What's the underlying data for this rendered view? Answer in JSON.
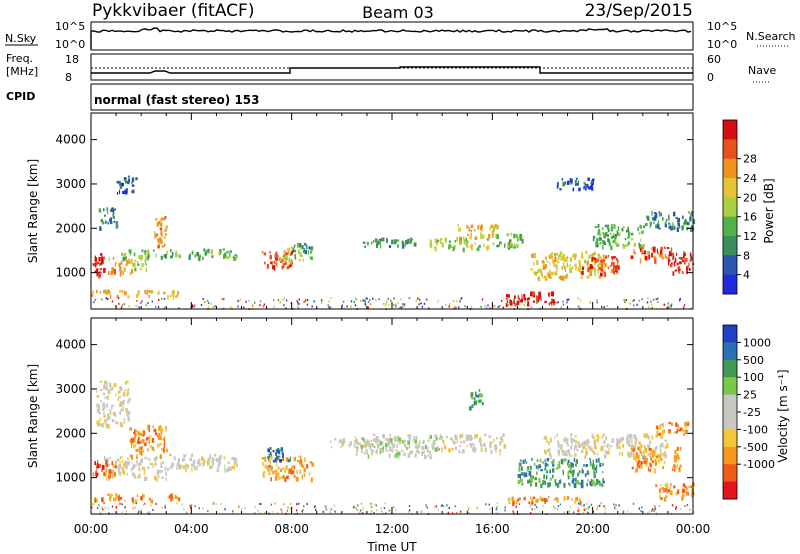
{
  "header": {
    "title": "Pykkvibaer (fitACF)",
    "beam": "Beam 03",
    "date": "23/Sep/2015"
  },
  "panels": {
    "nsky": {
      "label": "N.Sky",
      "tick_top": "10^5",
      "tick_bottom": "10^0",
      "right_label": "N.Search",
      "right_tick_top": "10^5",
      "right_tick_bottom": "10^0"
    },
    "freq": {
      "label_line1": "Freq.",
      "label_line2": "[MHz]",
      "tick_top": "18",
      "tick_bottom": "8",
      "right_label": "Nave",
      "right_tick_top": "60",
      "right_tick_bottom": "0"
    },
    "cpid": {
      "label": "CPID",
      "text": "normal (fast stereo) 153"
    }
  },
  "colors": {
    "power": [
      "#1f2bdc",
      "#2a55b0",
      "#3b8f5a",
      "#52b24a",
      "#a8d043",
      "#e7c436",
      "#f2931f",
      "#e8501c",
      "#d40f0f"
    ],
    "velocity": [
      "#e5141a",
      "#f05b18",
      "#f59a1f",
      "#f5c636",
      "#c8c8c0",
      "#c8c8c0",
      "#7ac74a",
      "#3f9a56",
      "#2a6fb0",
      "#2040c8"
    ],
    "ground_scatter": "#c8c8c0"
  },
  "chart_data": [
    {
      "type": "heatmap",
      "name": "power-panel",
      "xlabel": "",
      "ylabel": "Slant Range [km]",
      "xlim": [
        0,
        24
      ],
      "ylim": [
        180,
        4600
      ],
      "x_ticks": [
        "00:00",
        "04:00",
        "08:00",
        "12:00",
        "16:00",
        "20:00",
        "00:00"
      ],
      "y_ticks": [
        1000,
        2000,
        3000,
        4000
      ],
      "colorbar": {
        "label": "Power [dB]",
        "ticks": [
          "4",
          "8",
          "12",
          "16",
          "20",
          "24",
          "28"
        ]
      },
      "regions": [
        {
          "t0": 0.0,
          "t1": 0.6,
          "r0": 950,
          "r1": 1450,
          "level": 8
        },
        {
          "t0": 0.6,
          "t1": 1.6,
          "r0": 1000,
          "r1": 1400,
          "level": 6
        },
        {
          "t0": 0.3,
          "t1": 1.0,
          "r0": 2000,
          "r1": 2500,
          "level": 2
        },
        {
          "t0": 1.0,
          "t1": 1.8,
          "r0": 2800,
          "r1": 3200,
          "level": 1
        },
        {
          "t0": 1.2,
          "t1": 5.8,
          "r0": 1350,
          "r1": 1550,
          "level": 3
        },
        {
          "t0": 1.6,
          "t1": 2.2,
          "r0": 1100,
          "r1": 1400,
          "level": 4
        },
        {
          "t0": 2.5,
          "t1": 3.0,
          "r0": 1600,
          "r1": 2300,
          "level": 6
        },
        {
          "t0": 0.0,
          "t1": 3.5,
          "r0": 480,
          "r1": 620,
          "level": 5
        },
        {
          "t0": 6.8,
          "t1": 8.0,
          "r0": 1100,
          "r1": 1500,
          "level": 7
        },
        {
          "t0": 7.5,
          "t1": 8.8,
          "r0": 1300,
          "r1": 1600,
          "level": 4
        },
        {
          "t0": 8.0,
          "t1": 8.8,
          "r0": 1500,
          "r1": 1700,
          "level": 2
        },
        {
          "t0": 10.8,
          "t1": 13.0,
          "r0": 1600,
          "r1": 1800,
          "level": 2
        },
        {
          "t0": 13.5,
          "t1": 15.8,
          "r0": 1550,
          "r1": 1800,
          "level": 4
        },
        {
          "t0": 14.5,
          "t1": 16.2,
          "r0": 1800,
          "r1": 2100,
          "level": 5
        },
        {
          "t0": 16.0,
          "t1": 17.2,
          "r0": 1600,
          "r1": 1900,
          "level": 3
        },
        {
          "t0": 16.5,
          "t1": 18.5,
          "r0": 300,
          "r1": 600,
          "level": 8
        },
        {
          "t0": 17.5,
          "t1": 20.5,
          "r0": 900,
          "r1": 1500,
          "level": 5
        },
        {
          "t0": 19.5,
          "t1": 21.0,
          "r0": 1000,
          "r1": 1400,
          "level": 7
        },
        {
          "t0": 20.0,
          "t1": 22.0,
          "r0": 1600,
          "r1": 2100,
          "level": 3
        },
        {
          "t0": 21.5,
          "t1": 23.2,
          "r0": 1300,
          "r1": 1600,
          "level": 7
        },
        {
          "t0": 23.0,
          "t1": 24.0,
          "r0": 1000,
          "r1": 1500,
          "level": 8
        },
        {
          "t0": 22.0,
          "t1": 24.0,
          "r0": 2000,
          "r1": 2400,
          "level": 2
        },
        {
          "t0": 18.5,
          "t1": 20.0,
          "r0": 2900,
          "r1": 3200,
          "level": 1
        }
      ]
    },
    {
      "type": "heatmap",
      "name": "velocity-panel",
      "xlabel": "Time UT",
      "ylabel": "Slant Range [km]",
      "xlim": [
        0,
        24
      ],
      "ylim": [
        180,
        4600
      ],
      "x_ticks": [
        "00:00",
        "04:00",
        "08:00",
        "12:00",
        "16:00",
        "20:00",
        "00:00"
      ],
      "y_ticks": [
        1000,
        2000,
        3000,
        4000
      ],
      "colorbar": {
        "label": "Velocity [m s⁻¹]",
        "ticks": [
          "1000",
          "500",
          "100",
          "25",
          "-25",
          "-100",
          "-500",
          "-1000"
        ]
      },
      "regions": [
        {
          "t0": 0.2,
          "t1": 1.5,
          "r0": 2200,
          "r1": 3200,
          "level": 4
        },
        {
          "t0": 0.5,
          "t1": 3.0,
          "r0": 1000,
          "r1": 1500,
          "level": 4
        },
        {
          "t0": 1.5,
          "t1": 3.0,
          "r0": 1500,
          "r1": 2200,
          "level": 2
        },
        {
          "t0": 0.0,
          "t1": 1.0,
          "r0": 1050,
          "r1": 1400,
          "level": 1
        },
        {
          "t0": 3.0,
          "t1": 5.8,
          "r0": 1200,
          "r1": 1550,
          "level": 4
        },
        {
          "t0": 0.0,
          "t1": 3.5,
          "r0": 500,
          "r1": 650,
          "level": 2
        },
        {
          "t0": 6.8,
          "t1": 8.8,
          "r0": 1000,
          "r1": 1500,
          "level": 2
        },
        {
          "t0": 7.0,
          "t1": 8.0,
          "r0": 1400,
          "r1": 1700,
          "level": 8
        },
        {
          "t0": 9.5,
          "t1": 12.5,
          "r0": 1700,
          "r1": 1900,
          "level": 4
        },
        {
          "t0": 10.5,
          "t1": 14.0,
          "r0": 1500,
          "r1": 2000,
          "level": 5
        },
        {
          "t0": 14.0,
          "t1": 16.5,
          "r0": 1600,
          "r1": 2000,
          "level": 4
        },
        {
          "t0": 15.0,
          "t1": 15.6,
          "r0": 2600,
          "r1": 3000,
          "level": 7
        },
        {
          "t0": 16.5,
          "t1": 19.5,
          "r0": 450,
          "r1": 600,
          "level": 2
        },
        {
          "t0": 17.0,
          "t1": 20.5,
          "r0": 850,
          "r1": 1450,
          "level": 7
        },
        {
          "t0": 18.0,
          "t1": 23.0,
          "r0": 1500,
          "r1": 2000,
          "level": 4
        },
        {
          "t0": 21.5,
          "t1": 23.5,
          "r0": 1200,
          "r1": 1700,
          "level": 2
        },
        {
          "t0": 22.5,
          "t1": 24.0,
          "r0": 550,
          "r1": 900,
          "level": 2
        },
        {
          "t0": 22.5,
          "t1": 23.8,
          "r0": 2000,
          "r1": 2300,
          "level": 2
        }
      ]
    }
  ]
}
